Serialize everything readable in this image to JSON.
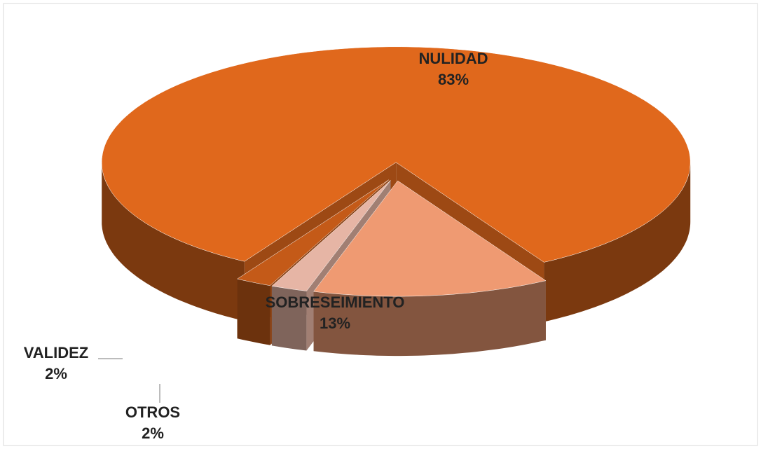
{
  "chart_data": {
    "type": "pie3d",
    "categories": [
      "NULIDAD",
      "SOBRESEIMIENTO",
      "OTROS",
      "VALIDEZ"
    ],
    "values": [
      83,
      13,
      2,
      2
    ],
    "value_labels": [
      "83%",
      "13%",
      "2%",
      "2%"
    ],
    "colors": [
      "#e0681c",
      "#ef9a72",
      "#e6b5a5",
      "#c45a18"
    ]
  }
}
